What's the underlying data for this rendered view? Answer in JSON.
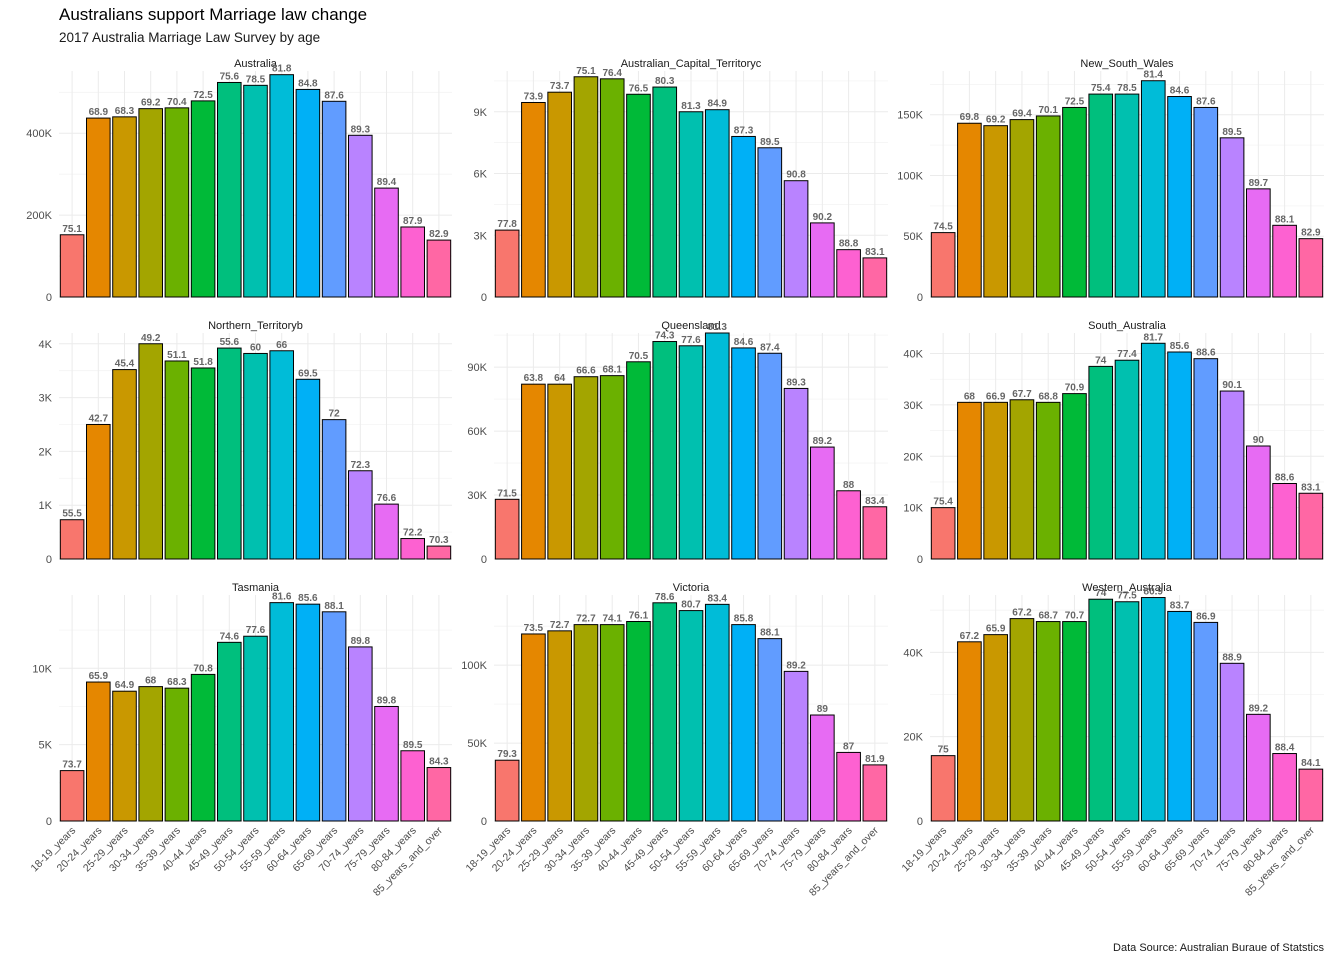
{
  "title": "Australians support Marriage law change",
  "subtitle": "2017 Australia Marriage Law Survey by age",
  "caption": "Data Source: Australian Buraue of Statstics",
  "chart_data": {
    "type": "bar",
    "facet_layout": "3x3",
    "grid": true,
    "legend": "none",
    "categories": [
      "18-19_years",
      "20-24_years",
      "25-29_years",
      "30-34_years",
      "35-39_years",
      "40-44_years",
      "45-49_years",
      "50-54_years",
      "55-59_years",
      "60-64_years",
      "65-69_years",
      "70-74_years",
      "75-79_years",
      "80-84_years",
      "85_years_and_over"
    ],
    "colors": [
      "#F8766D",
      "#E58700",
      "#C99800",
      "#A3A500",
      "#6BB100",
      "#00BA38",
      "#00BF7D",
      "#00C0AF",
      "#00BCD8",
      "#00B0F6",
      "#619CFF",
      "#B983FF",
      "#E76BF3",
      "#FD61D1",
      "#FF67A4"
    ],
    "panels": [
      {
        "name": "Australia",
        "ylim": [
          0,
          552000
        ],
        "yticks": [
          0,
          200000,
          400000
        ],
        "ytick_labels": [
          "0",
          "200K",
          "400K"
        ],
        "values": [
          152000,
          437000,
          440000,
          460000,
          462000,
          479000,
          524000,
          517000,
          543000,
          507000,
          478000,
          395000,
          266000,
          171000,
          139000
        ],
        "labels": [
          "75.1",
          "68.9",
          "68.3",
          "69.2",
          "70.4",
          "72.5",
          "75.6",
          "78.5",
          "81.8",
          "84.8",
          "87.6",
          "89.3",
          "89.4",
          "87.9",
          "82.9"
        ]
      },
      {
        "name": "Australian_Capital_Territoryc",
        "ylim": [
          0,
          10980
        ],
        "yticks": [
          0,
          3000,
          6000,
          9000
        ],
        "ytick_labels": [
          "0",
          "3K",
          "6K",
          "9K"
        ],
        "values": [
          3250,
          9450,
          9950,
          10700,
          10600,
          9850,
          10200,
          9000,
          9100,
          7800,
          7250,
          5650,
          3600,
          2300,
          1900
        ],
        "labels": [
          "77.8",
          "73.9",
          "73.7",
          "75.1",
          "76.4",
          "76.5",
          "80.3",
          "81.3",
          "84.9",
          "87.3",
          "89.5",
          "90.8",
          "90.2",
          "88.8",
          "83.1"
        ]
      },
      {
        "name": "New_South_Wales",
        "ylim": [
          0,
          186000
        ],
        "yticks": [
          0,
          50000,
          100000,
          150000
        ],
        "ytick_labels": [
          "0",
          "50K",
          "100K",
          "150K"
        ],
        "values": [
          53000,
          143000,
          141000,
          146000,
          149000,
          156000,
          167000,
          167000,
          178000,
          165000,
          156000,
          131000,
          89000,
          59000,
          48000
        ],
        "labels": [
          "74.5",
          "69.8",
          "69.2",
          "69.4",
          "70.1",
          "72.5",
          "75.4",
          "78.5",
          "81.4",
          "84.6",
          "87.6",
          "89.5",
          "89.7",
          "88.1",
          "82.9"
        ]
      },
      {
        "name": "Northern_Territoryb",
        "ylim": [
          0,
          4200
        ],
        "yticks": [
          0,
          1000,
          2000,
          3000,
          4000
        ],
        "ytick_labels": [
          "0",
          "1K",
          "2K",
          "3K",
          "4K"
        ],
        "values": [
          730,
          2500,
          3520,
          4000,
          3680,
          3550,
          3920,
          3820,
          3870,
          3340,
          2590,
          1640,
          1020,
          380,
          240
        ],
        "labels": [
          "55.5",
          "42.7",
          "45.4",
          "49.2",
          "51.1",
          "51.8",
          "55.6",
          "60",
          "66",
          "69.5",
          "72",
          "72.3",
          "76.6",
          "72.2",
          "70.3"
        ]
      },
      {
        "name": "Queensland",
        "ylim": [
          0,
          106000
        ],
        "yticks": [
          0,
          30000,
          60000,
          90000
        ],
        "ytick_labels": [
          "0",
          "30K",
          "60K",
          "90K"
        ],
        "values": [
          28000,
          82000,
          82000,
          85500,
          86000,
          92500,
          102000,
          100000,
          106000,
          99000,
          96500,
          80000,
          52500,
          32000,
          24500
        ],
        "labels": [
          "71.5",
          "63.8",
          "64",
          "66.6",
          "68.1",
          "70.5",
          "74.3",
          "77.6",
          "81.3",
          "84.6",
          "87.4",
          "89.3",
          "89.2",
          "88",
          "83.4"
        ]
      },
      {
        "name": "South_Australia",
        "ylim": [
          0,
          44000
        ],
        "yticks": [
          0,
          10000,
          20000,
          30000,
          40000
        ],
        "ytick_labels": [
          "0",
          "10K",
          "20K",
          "30K",
          "40K"
        ],
        "values": [
          10000,
          30500,
          30500,
          31000,
          30500,
          32200,
          37500,
          38700,
          42000,
          40300,
          39000,
          32700,
          22000,
          14700,
          12800
        ],
        "labels": [
          "75.4",
          "68",
          "66.9",
          "67.7",
          "68.8",
          "70.9",
          "74",
          "77.4",
          "81.7",
          "85.6",
          "88.6",
          "90.1",
          "90",
          "88.6",
          "83.1"
        ]
      },
      {
        "name": "Tasmania",
        "ylim": [
          0,
          14800
        ],
        "yticks": [
          0,
          5000,
          10000
        ],
        "ytick_labels": [
          "0",
          "5K",
          "10K"
        ],
        "values": [
          3300,
          9100,
          8500,
          8800,
          8700,
          9600,
          11700,
          12100,
          14300,
          14200,
          13700,
          11400,
          7500,
          4600,
          3500
        ],
        "labels": [
          "73.7",
          "65.9",
          "64.9",
          "68",
          "68.3",
          "70.8",
          "74.6",
          "77.6",
          "81.6",
          "85.6",
          "88.1",
          "89.8",
          "89.8",
          "89.5",
          "84.3"
        ]
      },
      {
        "name": "Victoria",
        "ylim": [
          0,
          145000
        ],
        "yticks": [
          0,
          50000,
          100000
        ],
        "ytick_labels": [
          "0",
          "50K",
          "100K"
        ],
        "values": [
          39000,
          120000,
          122000,
          126000,
          126000,
          128000,
          140000,
          135000,
          139000,
          126000,
          117000,
          96000,
          68000,
          44000,
          36000
        ],
        "labels": [
          "79.3",
          "73.5",
          "72.7",
          "72.7",
          "74.1",
          "76.1",
          "78.6",
          "80.7",
          "83.4",
          "85.8",
          "88.1",
          "89.2",
          "89",
          "87",
          "81.9"
        ]
      },
      {
        "name": "Western_Australia",
        "ylim": [
          0,
          53600
        ],
        "yticks": [
          0,
          20000,
          40000
        ],
        "ytick_labels": [
          "0",
          "20K",
          "40K"
        ],
        "values": [
          15500,
          42500,
          44200,
          48000,
          47300,
          47300,
          52600,
          52000,
          53000,
          49700,
          47100,
          37400,
          25300,
          16000,
          12300
        ],
        "labels": [
          "75",
          "67.2",
          "65.9",
          "67.2",
          "68.7",
          "70.7",
          "74",
          "77.5",
          "80.9",
          "83.7",
          "86.9",
          "88.9",
          "89.2",
          "88.4",
          "84.1"
        ]
      }
    ]
  }
}
